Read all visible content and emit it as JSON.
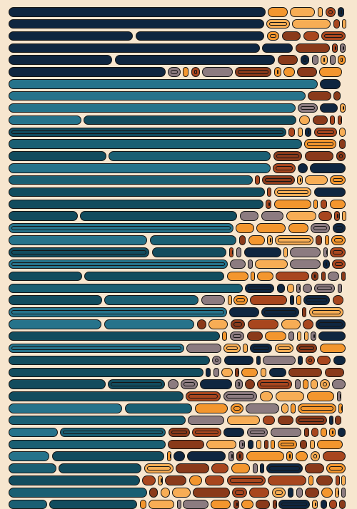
{
  "artwork": {
    "description_visible": false,
    "palette": {
      "background": "#f7e6cf",
      "outline": "#161616",
      "navy": "#0f2640",
      "teal_dark": "#124c5e",
      "teal": "#1a5f73",
      "teal_light": "#26738b",
      "rust": "#a8461e",
      "rust_dark": "#8a3a1a",
      "orange": "#f3962e",
      "orange_light": "#f7ad55",
      "mauve": "#8c7b80"
    }
  }
}
